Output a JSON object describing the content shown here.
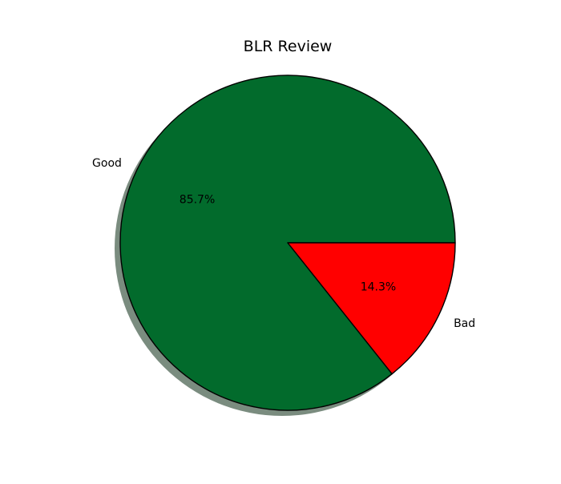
{
  "chart_data": {
    "type": "pie",
    "title": "BLR Review",
    "labels": [
      "Good",
      "Bad"
    ],
    "values": [
      85.7,
      14.3
    ],
    "autopct_labels": [
      "85.7%",
      "14.3%"
    ],
    "colors": [
      "#026b2c",
      "#ff0000"
    ],
    "shadow": true,
    "shadow_color": "#7a8c7f",
    "edge_color": "#000000",
    "start_angle_deg": 0,
    "direction": "counterclockwise"
  }
}
